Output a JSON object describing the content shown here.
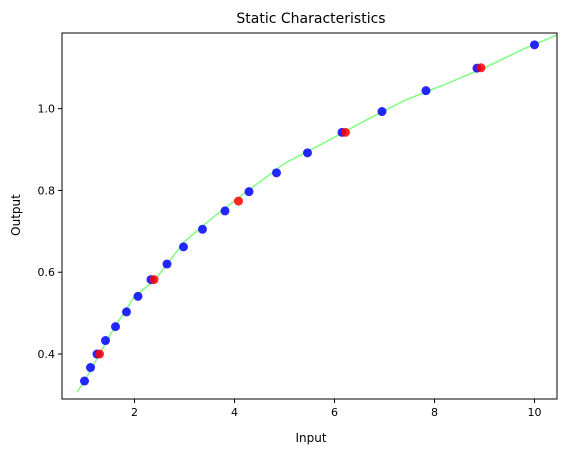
{
  "chart_data": {
    "type": "scatter",
    "title": "Static Characteristics",
    "xlabel": "Input",
    "ylabel": "Output",
    "xlim": [
      0.55,
      10.45
    ],
    "ylim": [
      0.29,
      1.185
    ],
    "xticks": [
      2,
      4,
      6,
      8,
      10
    ],
    "yticks": [
      0.4,
      0.6,
      0.8,
      1.0
    ],
    "ytick_labels": [
      "0.4",
      "0.6",
      "0.8",
      "1.0"
    ],
    "grid": false,
    "series": [
      {
        "marker": "line",
        "color": "#7fff7f",
        "x": [
          0.85,
          1.0,
          1.3,
          1.6,
          2.0,
          2.4,
          3.0,
          3.6,
          4.2,
          5.0,
          5.8,
          6.6,
          7.4,
          8.2,
          9.0,
          9.8,
          10.45
        ],
        "y": [
          0.307,
          0.334,
          0.399,
          0.465,
          0.541,
          0.58,
          0.675,
          0.737,
          0.793,
          0.866,
          0.917,
          0.97,
          1.02,
          1.059,
          1.1,
          1.147,
          1.18
        ]
      },
      {
        "marker": "point",
        "color": "#0000ff",
        "x": [
          1.0,
          1.12,
          1.25,
          1.42,
          1.62,
          1.84,
          2.07,
          2.33,
          2.65,
          2.98,
          3.36,
          3.81,
          4.29,
          4.84,
          5.46,
          6.15,
          6.95,
          7.83,
          8.85,
          10.0
        ],
        "y": [
          0.334,
          0.367,
          0.4,
          0.433,
          0.467,
          0.503,
          0.541,
          0.582,
          0.62,
          0.662,
          0.705,
          0.75,
          0.797,
          0.843,
          0.892,
          0.942,
          0.993,
          1.044,
          1.099,
          1.156
        ]
      },
      {
        "marker": "point",
        "color": "#ff0000",
        "x": [
          1.3,
          2.39,
          4.08,
          6.22,
          8.93
        ],
        "y": [
          0.4,
          0.582,
          0.774,
          0.942,
          1.1
        ]
      }
    ]
  }
}
